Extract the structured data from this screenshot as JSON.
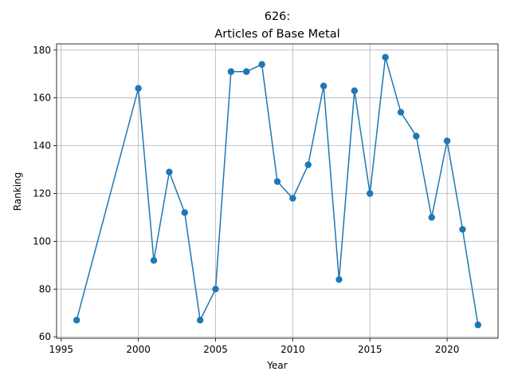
{
  "chart_data": {
    "type": "line",
    "title_line1": "626:",
    "title_line2": "Articles of Base Metal",
    "xlabel": "Year",
    "ylabel": "Ranking",
    "xlim": [
      1994.7,
      2023.3
    ],
    "ylim": [
      59.4,
      182.6
    ],
    "xticks": [
      1995,
      2000,
      2005,
      2010,
      2015,
      2020
    ],
    "yticks": [
      60,
      80,
      100,
      120,
      140,
      160,
      180
    ],
    "grid": true,
    "color": "#1f77b4",
    "marker": "circle",
    "series": [
      {
        "x": [
          1996,
          2000,
          2001,
          2002,
          2003,
          2004,
          2005,
          2006,
          2007,
          2008,
          2009,
          2010,
          2011,
          2012,
          2013,
          2014,
          2015,
          2016,
          2017,
          2018,
          2019,
          2020,
          2021,
          2022
        ],
        "values": [
          67,
          164,
          92,
          129,
          112,
          67,
          80,
          171,
          171,
          174,
          125,
          118,
          132,
          165,
          84,
          163,
          120,
          177,
          154,
          144,
          110,
          142,
          105,
          65
        ]
      }
    ]
  }
}
